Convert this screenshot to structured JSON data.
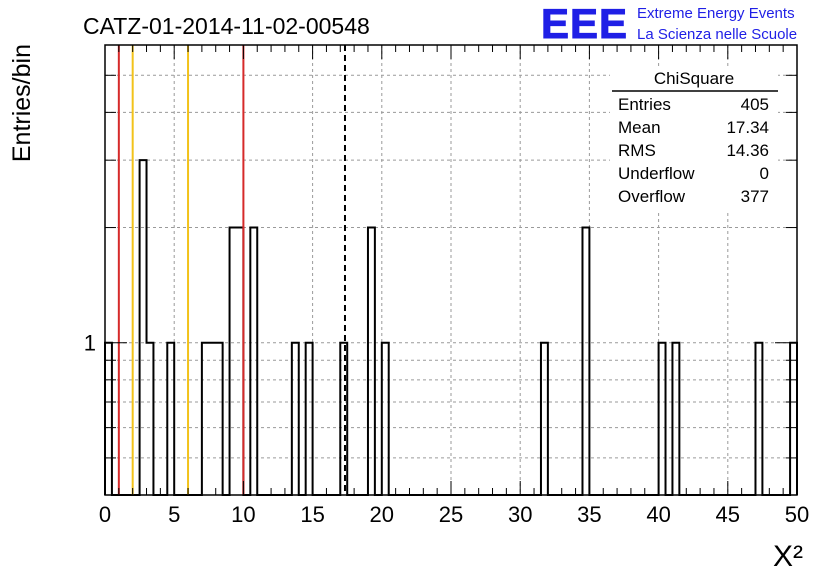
{
  "title": "CATZ-01-2014-11-02-00548",
  "logo": {
    "mark": "EEE",
    "line1": "Extreme Energy Events",
    "line2": "La Scienza nelle Scuole",
    "color": "#1f1fe6"
  },
  "colors": {
    "hist": "#000000",
    "red_line": "#d62a2a",
    "yellow_line": "#f2c21a",
    "grid": "#9a9a9a"
  },
  "stats": {
    "name": "ChiSquare",
    "rows": [
      {
        "label": "Entries",
        "value": "405"
      },
      {
        "label": "Mean",
        "value": "17.34"
      },
      {
        "label": "RMS",
        "value": "14.36"
      },
      {
        "label": "Underflow",
        "value": "0"
      },
      {
        "label": "Overflow",
        "value": "377"
      }
    ]
  },
  "chart_data": {
    "type": "bar",
    "xlabel": "X²",
    "ylabel": "Entries/bin",
    "xlim": [
      0,
      50
    ],
    "ylim": [
      0.4,
      6
    ],
    "yscale": "log",
    "grid": true,
    "bin_width": 0.5,
    "x_ticks": [
      "0",
      "5",
      "10",
      "15",
      "20",
      "25",
      "30",
      "35",
      "40",
      "45",
      "50"
    ],
    "y_tick_labels": [
      {
        "value": 1,
        "label": "1"
      }
    ],
    "bins": [
      {
        "x": 0.0,
        "count": 1
      },
      {
        "x": 2.5,
        "count": 3
      },
      {
        "x": 3.0,
        "count": 1
      },
      {
        "x": 4.5,
        "count": 1
      },
      {
        "x": 7.0,
        "count": 1
      },
      {
        "x": 7.5,
        "count": 1
      },
      {
        "x": 8.0,
        "count": 1
      },
      {
        "x": 9.0,
        "count": 2
      },
      {
        "x": 9.5,
        "count": 2
      },
      {
        "x": 10.5,
        "count": 2
      },
      {
        "x": 13.5,
        "count": 1
      },
      {
        "x": 14.5,
        "count": 1
      },
      {
        "x": 17.0,
        "count": 1
      },
      {
        "x": 19.0,
        "count": 2
      },
      {
        "x": 20.0,
        "count": 1
      },
      {
        "x": 31.5,
        "count": 1
      },
      {
        "x": 34.5,
        "count": 2
      },
      {
        "x": 40.0,
        "count": 1
      },
      {
        "x": 41.0,
        "count": 1
      },
      {
        "x": 47.0,
        "count": 1
      },
      {
        "x": 49.5,
        "count": 1
      }
    ],
    "vertical_lines": [
      {
        "x": 1.0,
        "color": "red",
        "style": "solid"
      },
      {
        "x": 2.0,
        "color": "yellow",
        "style": "solid"
      },
      {
        "x": 6.0,
        "color": "yellow",
        "style": "solid"
      },
      {
        "x": 10.0,
        "color": "red",
        "style": "solid"
      },
      {
        "x": 17.34,
        "color": "black",
        "style": "dashed"
      }
    ]
  }
}
